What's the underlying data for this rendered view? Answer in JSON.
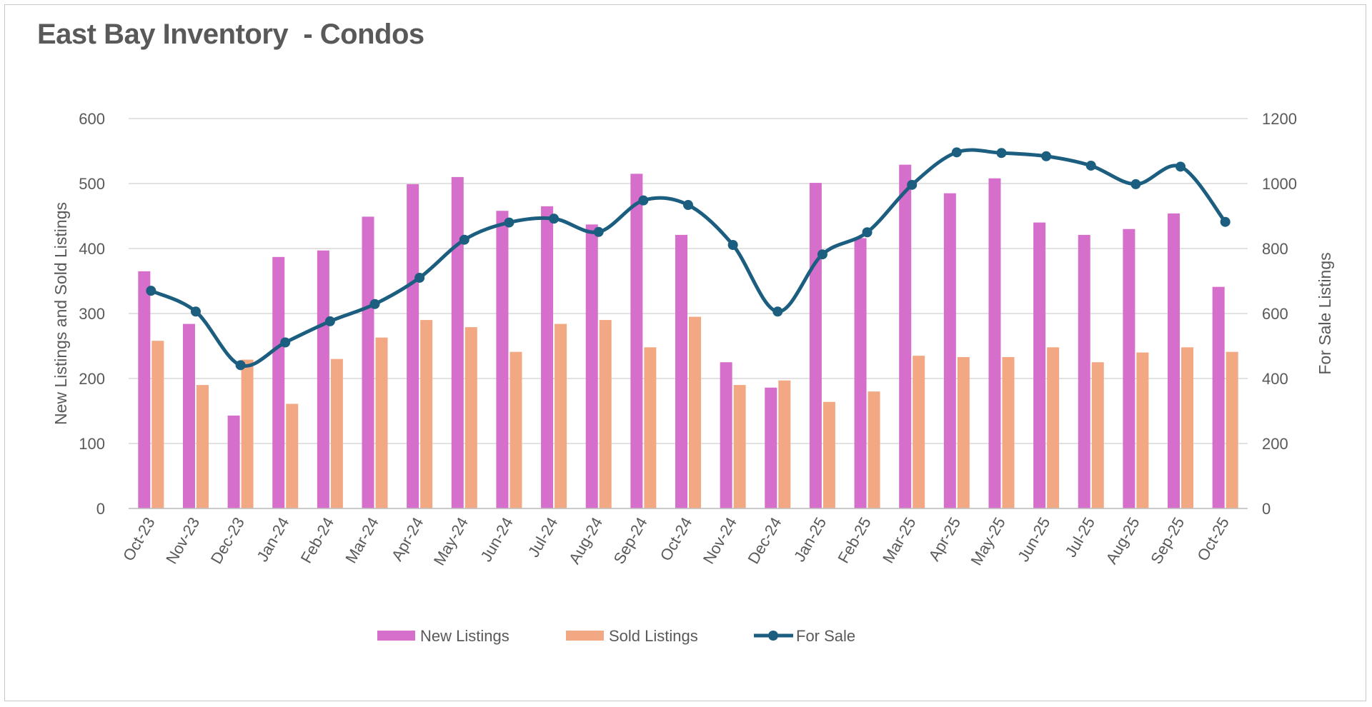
{
  "chart_data": {
    "type": "bar",
    "title": "East Bay Inventory  - Condos",
    "categories": [
      "Oct-23",
      "Nov-23",
      "Dec-23",
      "Jan-24",
      "Feb-24",
      "Mar-24",
      "Apr-24",
      "May-24",
      "Jun-24",
      "Jul-24",
      "Aug-24",
      "Sep-24",
      "Oct-24",
      "Nov-24",
      "Dec-24",
      "Jan-25",
      "Feb-25",
      "Mar-25",
      "Apr-25",
      "May-25",
      "Jun-25",
      "Jul-25",
      "Aug-25",
      "Sep-25",
      "Oct-25"
    ],
    "ylabel": "New Listings and Sold Listings",
    "y2label": "For Sale Listings",
    "ylim": [
      0,
      600
    ],
    "y2lim": [
      0,
      1200
    ],
    "yticks": [
      "0",
      "100",
      "200",
      "300",
      "400",
      "500",
      "600"
    ],
    "y2ticks": [
      "0",
      "200",
      "400",
      "600",
      "800",
      "1000",
      "1200"
    ],
    "grid": true,
    "legend_position": "bottom",
    "series": [
      {
        "name": "New Listings",
        "type": "bar",
        "axis": "left",
        "color": "#d56fcb",
        "values": [
          365,
          284,
          143,
          387,
          397,
          449,
          499,
          510,
          458,
          465,
          437,
          515,
          421,
          225,
          186,
          501,
          416,
          529,
          485,
          508,
          440,
          421,
          430,
          454,
          341
        ]
      },
      {
        "name": "Sold Listings",
        "type": "bar",
        "axis": "left",
        "color": "#f2a882",
        "values": [
          258,
          190,
          229,
          161,
          230,
          263,
          290,
          279,
          241,
          284,
          290,
          248,
          295,
          190,
          197,
          164,
          180,
          235,
          233,
          233,
          248,
          225,
          240,
          248,
          241
        ]
      },
      {
        "name": "For Sale",
        "type": "line",
        "axis": "right",
        "color": "#1b5e80",
        "values": [
          670,
          606,
          441,
          511,
          576,
          629,
          710,
          827,
          880,
          892,
          851,
          948,
          934,
          811,
          606,
          782,
          850,
          996,
          1096,
          1094,
          1084,
          1055,
          998,
          1052,
          882
        ]
      }
    ]
  }
}
